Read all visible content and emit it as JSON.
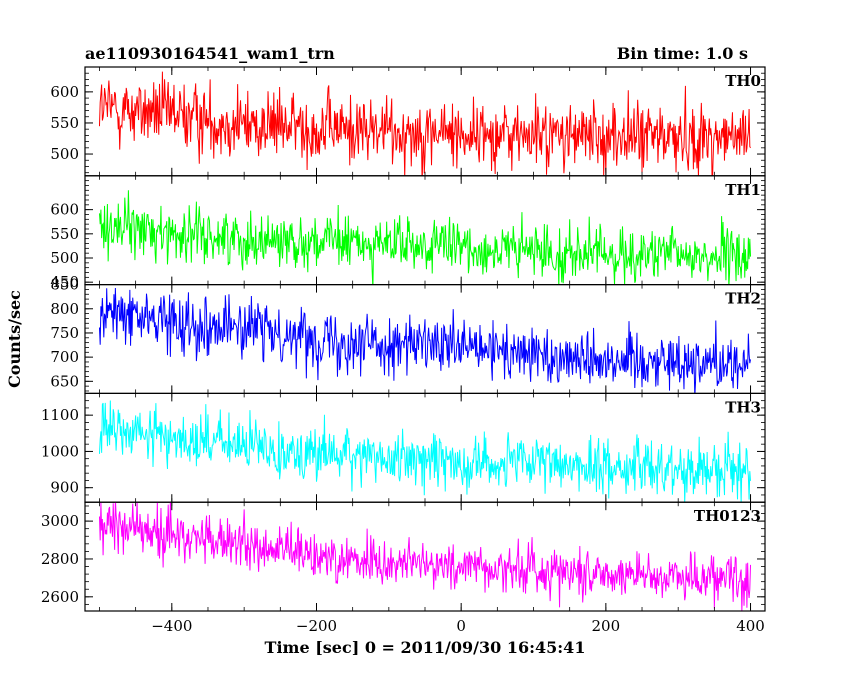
{
  "header": {
    "title_left": "ae110930164541_wam1_trn",
    "title_right": "Bin time: 1.0 s"
  },
  "chart_data": {
    "type": "line",
    "xlabel": "Time [sec] 0 = 2011/09/30 16:45:41",
    "ylabel": "Counts/sec",
    "xlim": [
      -520,
      420
    ],
    "xticks": [
      -400,
      -200,
      0,
      200,
      400
    ],
    "x_range": [
      -500,
      400
    ],
    "bin_time_s": 1.0,
    "series": [
      {
        "name": "TH0",
        "color": "#ff0000",
        "ylim": [
          465,
          640
        ],
        "yticks": [
          500,
          550,
          600
        ],
        "trend": [
          [
            -500,
            575
          ],
          [
            -400,
            563
          ],
          [
            -300,
            548
          ],
          [
            -200,
            542
          ],
          [
            -100,
            537
          ],
          [
            0,
            533
          ],
          [
            100,
            530
          ],
          [
            200,
            528
          ],
          [
            300,
            528
          ],
          [
            400,
            524
          ]
        ],
        "noise": 28
      },
      {
        "name": "TH1",
        "color": "#00ff00",
        "ylim": [
          445,
          670
        ],
        "yticks": [
          450,
          500,
          550,
          600
        ],
        "trend": [
          [
            -500,
            570
          ],
          [
            -400,
            551
          ],
          [
            -300,
            540
          ],
          [
            -200,
            534
          ],
          [
            -100,
            528
          ],
          [
            0,
            520
          ],
          [
            100,
            513
          ],
          [
            200,
            507
          ],
          [
            300,
            505
          ],
          [
            400,
            502
          ]
        ],
        "noise": 28
      },
      {
        "name": "TH2",
        "color": "#0000ff",
        "ylim": [
          625,
          850
        ],
        "yticks": [
          650,
          700,
          750,
          800,
          850
        ],
        "trend": [
          [
            -500,
            790
          ],
          [
            -400,
            776
          ],
          [
            -300,
            760
          ],
          [
            -200,
            740
          ],
          [
            -100,
            728
          ],
          [
            0,
            716
          ],
          [
            100,
            705
          ],
          [
            200,
            698
          ],
          [
            300,
            692
          ],
          [
            400,
            688
          ]
        ],
        "noise": 30
      },
      {
        "name": "TH3",
        "color": "#00ffff",
        "ylim": [
          860,
          1160
        ],
        "yticks": [
          900,
          1000,
          1100
        ],
        "trend": [
          [
            -500,
            1060
          ],
          [
            -400,
            1040
          ],
          [
            -300,
            1015
          ],
          [
            -200,
            995
          ],
          [
            -100,
            982
          ],
          [
            0,
            972
          ],
          [
            100,
            965
          ],
          [
            200,
            958
          ],
          [
            300,
            955
          ],
          [
            400,
            950
          ]
        ],
        "noise": 38
      },
      {
        "name": "TH0123",
        "color": "#ff00ff",
        "ylim": [
          2525,
          3100
        ],
        "yticks": [
          2600,
          2800,
          3000
        ],
        "trend": [
          [
            -500,
            2990
          ],
          [
            -400,
            2930
          ],
          [
            -300,
            2870
          ],
          [
            -200,
            2815
          ],
          [
            -100,
            2782
          ],
          [
            0,
            2762
          ],
          [
            100,
            2745
          ],
          [
            200,
            2725
          ],
          [
            300,
            2712
          ],
          [
            400,
            2700
          ]
        ],
        "noise": 65
      }
    ]
  }
}
